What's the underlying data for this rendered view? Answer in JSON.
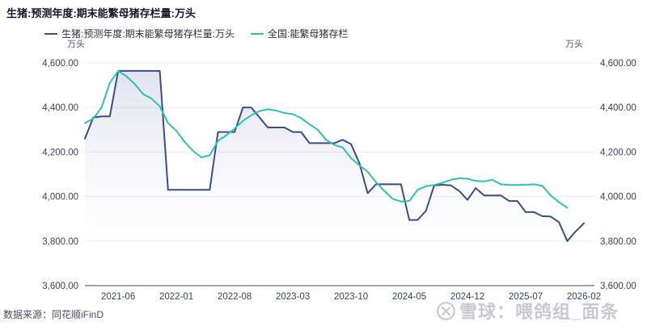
{
  "title": "生猪:预测年度:期末能繁母猪存栏量:万头",
  "unit_left": "万头",
  "unit_right": "万头",
  "source": "数据来源：同花顺iFinD",
  "watermark": {
    "logo": "xueqiu-logo",
    "text": "雪球：喂鸽组_面条"
  },
  "legend": {
    "items": [
      {
        "label": "生猪:预测年度:期末能繁母猪存栏量:万头",
        "color": "#3c4c85"
      },
      {
        "label": "全国:能繁母猪存栏",
        "color": "#2fc0ae"
      }
    ]
  },
  "colors": {
    "navy_series": "#3c4c85",
    "teal_series": "#2fc0ae",
    "grid": "#e9ecf4",
    "axis_line": "#5f6d8d",
    "tick_text": "#39425e",
    "area_fill_top": "rgba(120,135,190,0.25)",
    "area_fill_bottom": "rgba(255,255,255,0)",
    "watermark": "#c7c9d2"
  },
  "chart_data": {
    "type": "line",
    "title": "生猪:预测年度:期末能繁母猪存栏量:万头",
    "xlabel": "",
    "ylabel": "万头",
    "ylim": [
      3600,
      4600
    ],
    "grid": true,
    "legend_position": "top",
    "y_ticks": [
      3600,
      3800,
      4000,
      4200,
      4400,
      4600
    ],
    "y_tick_labels": [
      "3,600.00",
      "3,800.00",
      "4,000.00",
      "4,200.00",
      "4,400.00",
      "4,600.00"
    ],
    "x": [
      "2021-02",
      "2021-03",
      "2021-04",
      "2021-05",
      "2021-06",
      "2021-07",
      "2021-08",
      "2021-09",
      "2021-10",
      "2021-11",
      "2021-12",
      "2022-01",
      "2022-02",
      "2022-03",
      "2022-04",
      "2022-05",
      "2022-06",
      "2022-07",
      "2022-08",
      "2022-09",
      "2022-10",
      "2022-11",
      "2022-12",
      "2023-01",
      "2023-02",
      "2023-03",
      "2023-04",
      "2023-05",
      "2023-06",
      "2023-07",
      "2023-08",
      "2023-09",
      "2023-10",
      "2023-11",
      "2023-12",
      "2024-01",
      "2024-02",
      "2024-03",
      "2024-04",
      "2024-05",
      "2024-06",
      "2024-07",
      "2024-08",
      "2024-09",
      "2024-10",
      "2024-11",
      "2024-12",
      "2025-01",
      "2025-02",
      "2025-03",
      "2025-04",
      "2025-05",
      "2025-06",
      "2025-07",
      "2025-08",
      "2025-09",
      "2025-10",
      "2025-11",
      "2025-12",
      "2026-01",
      "2026-02"
    ],
    "x_tick_labels": [
      "2021-06",
      "2022-01",
      "2022-08",
      "2023-03",
      "2023-10",
      "2024-05",
      "2024-12",
      "2025-07",
      "2026-02"
    ],
    "x_tick_indices": [
      4,
      11,
      18,
      25,
      32,
      39,
      46,
      53,
      60
    ],
    "series": [
      {
        "name": "生猪:预测年度:期末能繁母猪存栏量:万头",
        "color": "#3c4c85",
        "area": true,
        "values": [
          4260,
          4355,
          4360,
          4360,
          4564,
          4564,
          4564,
          4564,
          4564,
          4564,
          4030,
          4030,
          4030,
          4030,
          4030,
          4030,
          4290,
          4290,
          4290,
          4400,
          4400,
          4355,
          4310,
          4310,
          4310,
          4290,
          4290,
          4240,
          4240,
          4240,
          4240,
          4255,
          4235,
          4150,
          4015,
          4055,
          4055,
          4055,
          4055,
          3895,
          3895,
          3935,
          4050,
          4053,
          4050,
          4025,
          3985,
          4038,
          4005,
          4005,
          4005,
          3980,
          3980,
          3930,
          3930,
          3912,
          3910,
          3885,
          3800,
          3843,
          3880
        ]
      },
      {
        "name": "全国:能繁母猪存栏",
        "color": "#2fc0ae",
        "area": false,
        "values": [
          4330,
          4350,
          4400,
          4510,
          4564,
          4540,
          4505,
          4460,
          4440,
          4405,
          4330,
          4295,
          4245,
          4205,
          4176,
          4185,
          4250,
          4275,
          4305,
          4340,
          4365,
          4384,
          4392,
          4386,
          4375,
          4370,
          4352,
          4325,
          4300,
          4255,
          4232,
          4220,
          4172,
          4140,
          4112,
          4065,
          4025,
          3990,
          3978,
          3980,
          4030,
          4046,
          4052,
          4062,
          4075,
          4082,
          4080,
          4070,
          4068,
          4075,
          4055,
          4052,
          4052,
          4053,
          4055,
          4048,
          4005,
          3975,
          3950,
          null,
          null
        ]
      }
    ]
  }
}
